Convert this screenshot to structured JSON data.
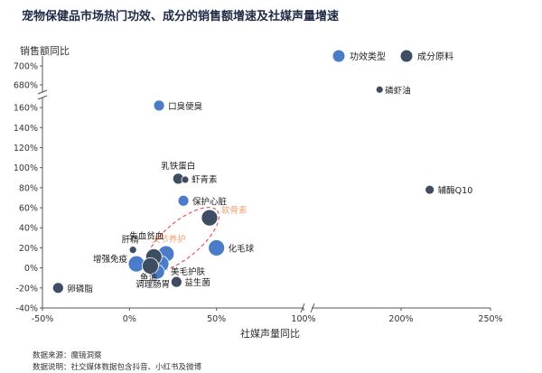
{
  "chart_data": {
    "type": "scatter",
    "title": "宠物保健品市场热门功效、成分的销售额增速及社媒声量增速",
    "xlabel": "社媒声量同比",
    "ylabel": "销售额同比",
    "x_ticks": [
      "-50%",
      "0%",
      "50%",
      "100%",
      "200%",
      "250%"
    ],
    "y_ticks": [
      "700%",
      "680%",
      "160%",
      "140%",
      "120%",
      "100%",
      "80%",
      "60%",
      "40%",
      "20%",
      "0%",
      "-20%",
      "-40%"
    ],
    "x_range": [
      -50,
      250
    ],
    "x_break": [
      100,
      150
    ],
    "y_range": [
      -40,
      700
    ],
    "y_break": [
      170,
      670
    ],
    "legend": {
      "position": "top-right"
    },
    "series": [
      {
        "name": "功效类型",
        "color": "#4a7cc9",
        "points": [
          {
            "label": "口臭便臭",
            "x": 17,
            "y": 162
          },
          {
            "label": "保护心脏",
            "x": 31,
            "y": 67
          },
          {
            "label": "化毛球",
            "x": 50,
            "y": 20
          },
          {
            "label": "关节养护",
            "x": 21,
            "y": 14
          },
          {
            "label": "增强免疫",
            "x": 4,
            "y": 4
          },
          {
            "label": "美毛护肤",
            "x": 18,
            "y": 4
          },
          {
            "label": "调理肠胃",
            "x": 16,
            "y": -4
          }
        ]
      },
      {
        "name": "成分原料",
        "color": "#3f4d63",
        "points": [
          {
            "label": "磷虾油",
            "x": 188,
            "y": 675
          },
          {
            "label": "辅酶Q10",
            "x": 216,
            "y": 78
          },
          {
            "label": "乳铁蛋白",
            "x": 28,
            "y": 89
          },
          {
            "label": "虾青素",
            "x": 32,
            "y": 88
          },
          {
            "label": "软骨素",
            "x": 46,
            "y": 50
          },
          {
            "label": "肝精",
            "x": 2,
            "y": 18
          },
          {
            "label": "失血贫血",
            "x": 14,
            "y": 11
          },
          {
            "label": "鱼油",
            "x": 12,
            "y": 2
          },
          {
            "label": "益生菌",
            "x": 27,
            "y": -14
          },
          {
            "label": "卵磷脂",
            "x": -41,
            "y": -20
          }
        ]
      }
    ],
    "highlighted": [
      "关节养护",
      "软骨素"
    ],
    "source_note": "数据来源：魔镜洞察",
    "explain_note": "数据说明：社交媒体数据包含抖音、小红书及微博"
  }
}
